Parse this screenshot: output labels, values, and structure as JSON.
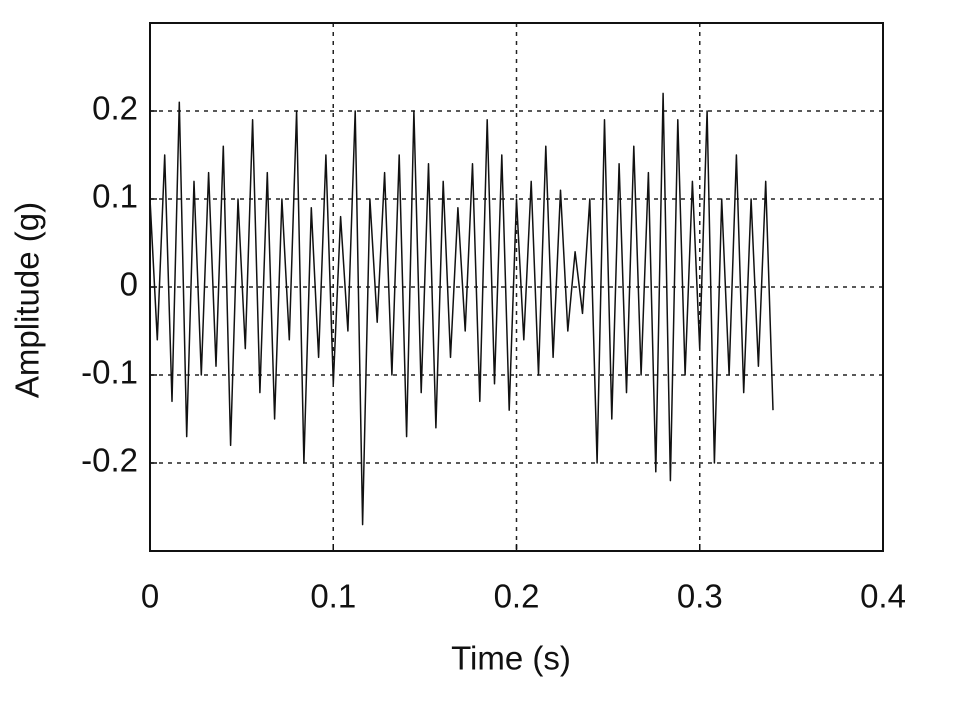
{
  "chart_data": {
    "type": "line",
    "xlabel": "Time (s)",
    "ylabel": "Amplitude (g)",
    "xlim": [
      0,
      0.4
    ],
    "ylim": [
      -0.3,
      0.3
    ],
    "xticks": [
      0,
      0.1,
      0.2,
      0.3,
      0.4
    ],
    "yticks": [
      -0.2,
      -0.1,
      0,
      0.1,
      0.2
    ],
    "grid": true,
    "color": "#111111",
    "x": [
      0,
      0.004,
      0.008,
      0.012,
      0.016,
      0.02,
      0.024,
      0.028,
      0.032,
      0.036,
      0.04,
      0.044,
      0.048,
      0.052,
      0.056,
      0.06,
      0.064,
      0.068,
      0.072,
      0.076,
      0.08,
      0.084,
      0.088,
      0.092,
      0.096,
      0.1,
      0.104,
      0.108,
      0.112,
      0.116,
      0.12,
      0.124,
      0.128,
      0.132,
      0.136,
      0.14,
      0.144,
      0.148,
      0.152,
      0.156,
      0.16,
      0.164,
      0.168,
      0.172,
      0.176,
      0.18,
      0.184,
      0.188,
      0.192,
      0.196,
      0.2,
      0.204,
      0.208,
      0.212,
      0.216,
      0.22,
      0.224,
      0.228,
      0.232,
      0.236,
      0.24,
      0.244,
      0.248,
      0.252,
      0.256,
      0.26,
      0.264,
      0.268,
      0.272,
      0.276,
      0.28,
      0.284,
      0.288,
      0.292,
      0.296,
      0.3,
      0.304,
      0.308,
      0.312,
      0.316,
      0.32,
      0.324,
      0.328,
      0.332,
      0.336,
      0.34
    ],
    "values": [
      0.1,
      -0.06,
      0.15,
      -0.13,
      0.21,
      -0.17,
      0.12,
      -0.1,
      0.13,
      -0.09,
      0.16,
      -0.18,
      0.1,
      -0.07,
      0.19,
      -0.12,
      0.13,
      -0.15,
      0.1,
      -0.06,
      0.2,
      -0.2,
      0.09,
      -0.08,
      0.15,
      -0.11,
      0.08,
      -0.05,
      0.2,
      -0.27,
      0.1,
      -0.04,
      0.13,
      -0.1,
      0.15,
      -0.17,
      0.2,
      -0.12,
      0.14,
      -0.16,
      0.12,
      -0.08,
      0.09,
      -0.05,
      0.14,
      -0.13,
      0.19,
      -0.11,
      0.15,
      -0.14,
      0.1,
      -0.06,
      0.12,
      -0.1,
      0.16,
      -0.08,
      0.11,
      -0.05,
      0.04,
      -0.03,
      0.1,
      -0.2,
      0.19,
      -0.15,
      0.14,
      -0.12,
      0.16,
      -0.1,
      0.13,
      -0.21,
      0.22,
      -0.22,
      0.19,
      -0.1,
      0.12,
      -0.07,
      0.2,
      -0.2,
      0.1,
      -0.1,
      0.15,
      -0.12,
      0.1,
      -0.09,
      0.12,
      -0.14
    ]
  }
}
